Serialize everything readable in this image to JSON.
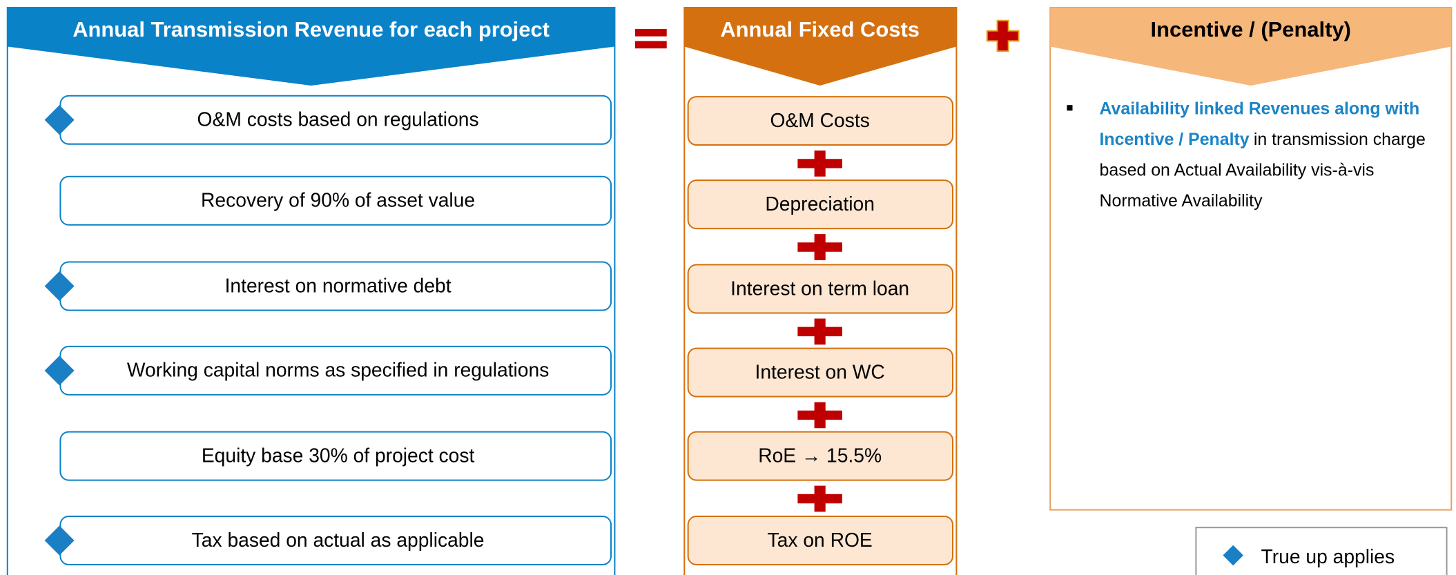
{
  "left": {
    "title": "Annual Transmission Revenue for each project",
    "items": [
      {
        "label": "O&M costs based on regulations",
        "true_up": true
      },
      {
        "label": "Recovery of 90% of asset value",
        "true_up": false
      },
      {
        "label": "Interest on normative debt",
        "true_up": true
      },
      {
        "label": "Working capital norms as specified in regulations",
        "true_up": true
      },
      {
        "label": "Equity base 30% of project cost",
        "true_up": false
      },
      {
        "label": "Tax based on actual as applicable",
        "true_up": true
      }
    ]
  },
  "middle": {
    "title": "Annual Fixed Costs",
    "items": [
      "O&M Costs",
      "Depreciation",
      "Interest on term loan",
      "Interest on WC",
      "RoE → 15.5%",
      "Tax on ROE"
    ]
  },
  "right": {
    "title": "Incentive / (Penalty)",
    "bullet": {
      "highlight": "Availability linked Revenues along with Incentive / Penalty",
      "text": "in transmission charge based on Actual Availability vis-à-vis Normative Availability"
    }
  },
  "legend": {
    "label": "True up applies"
  }
}
